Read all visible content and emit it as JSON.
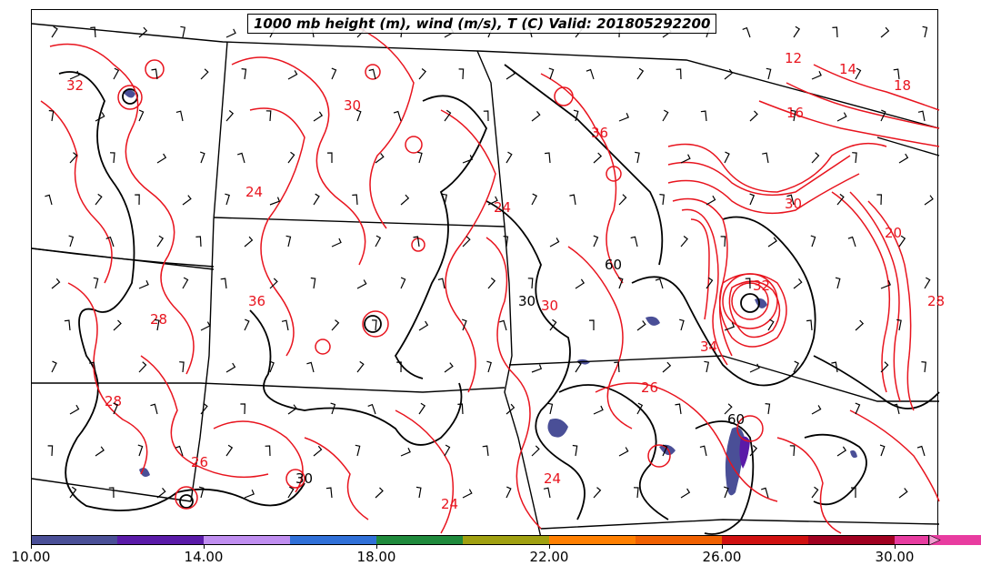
{
  "title": "1000 mb height (m), wind (m/s), T (C) Valid: 201805292200",
  "colors": {
    "temperature_contour": "#e8141e",
    "height_contour": "#000000",
    "border": "#000000",
    "background": "#ffffff"
  },
  "colorbar": {
    "colors": [
      "#4a4f97",
      "#5a1aa8",
      "#c08ef0",
      "#3070d8",
      "#1f8a3c",
      "#a0a010",
      "#ff7f00",
      "#f06000",
      "#d01010",
      "#a00020",
      "#e83ca0",
      "#f29ad0"
    ],
    "labels": [
      "10.00",
      "14.00",
      "18.00",
      "22.00",
      "26.00",
      "30.00"
    ]
  },
  "contour_labels": [
    "32",
    "30",
    "24",
    "14",
    "18",
    "16",
    "12",
    "20",
    "28",
    "26",
    "30",
    "32",
    "36",
    "34",
    "30",
    "28",
    "24",
    "36",
    "26",
    "28",
    "24",
    "24"
  ],
  "height_labels": [
    "30",
    "60",
    "30",
    "60"
  ]
}
